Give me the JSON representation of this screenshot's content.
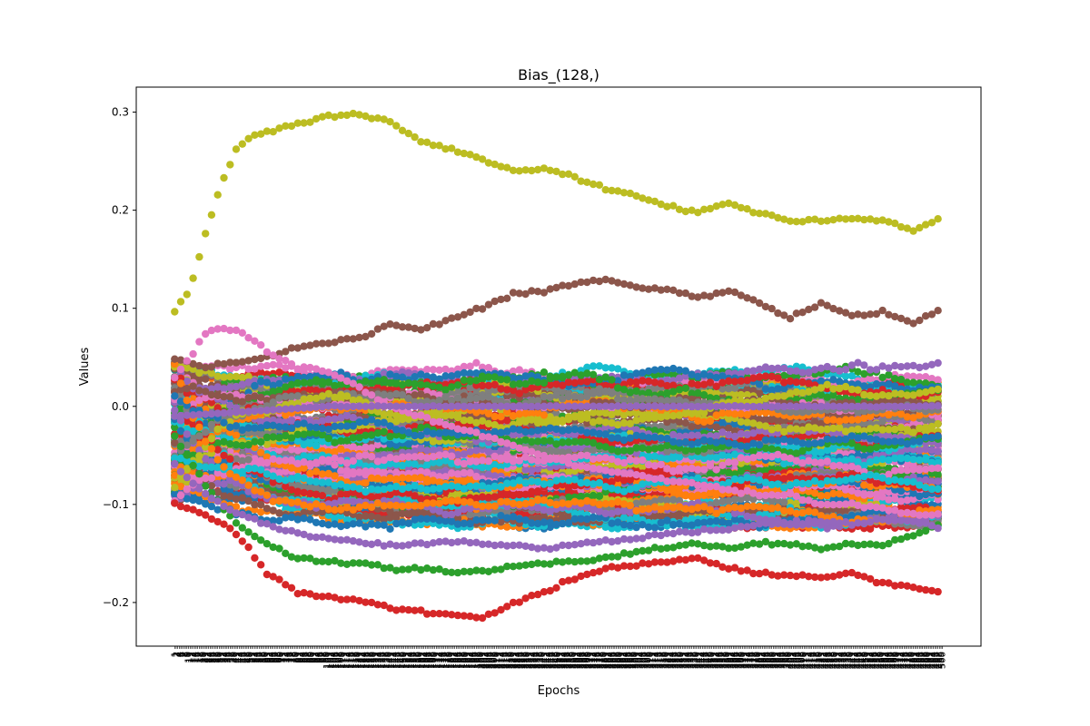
{
  "chart_data": {
    "type": "scatter",
    "title": "Bias_(128,)",
    "xlabel": "Epochs",
    "ylabel": "Values",
    "n_epochs": 500,
    "xlim": [
      -24.95,
      523.95
    ],
    "ylim": [
      -0.2445,
      0.3255
    ],
    "yticks": [
      -0.2,
      -0.1,
      0.0,
      0.1,
      0.2,
      0.3
    ],
    "ytick_labels": [
      "−0.2",
      "−0.1",
      "0.0",
      "0.1",
      "0.2",
      "0.3"
    ],
    "grid": false,
    "legend": "none",
    "n_series": 128,
    "marker": "o",
    "colors": [
      "#1f77b4",
      "#ff7f0e",
      "#2ca02c",
      "#d62728",
      "#9467bd",
      "#8c564b",
      "#e377c2",
      "#7f7f7f",
      "#bcbd22",
      "#17becf"
    ],
    "highlighted_series": [
      {
        "name": "",
        "color": "#bcbd22",
        "x": [
          0,
          10,
          20,
          30,
          40,
          50,
          60,
          80,
          100,
          120,
          140,
          160,
          180,
          200,
          220,
          240,
          260,
          280,
          300,
          320,
          340,
          360,
          380,
          400,
          420,
          440,
          460,
          480,
          499
        ],
        "values": [
          0.097,
          0.12,
          0.175,
          0.225,
          0.262,
          0.276,
          0.28,
          0.288,
          0.296,
          0.298,
          0.29,
          0.27,
          0.262,
          0.252,
          0.24,
          0.242,
          0.234,
          0.222,
          0.215,
          0.205,
          0.198,
          0.207,
          0.197,
          0.19,
          0.189,
          0.192,
          0.19,
          0.18,
          0.192
        ]
      },
      {
        "name": "",
        "color": "#8c564b",
        "x": [
          0,
          20,
          40,
          60,
          80,
          100,
          120,
          140,
          160,
          180,
          200,
          220,
          240,
          260,
          280,
          300,
          320,
          340,
          360,
          380,
          400,
          420,
          440,
          460,
          480,
          499
        ],
        "values": [
          0.05,
          0.04,
          0.045,
          0.05,
          0.06,
          0.065,
          0.07,
          0.083,
          0.078,
          0.09,
          0.1,
          0.115,
          0.118,
          0.125,
          0.13,
          0.122,
          0.12,
          0.11,
          0.118,
          0.105,
          0.09,
          0.105,
          0.092,
          0.095,
          0.085,
          0.1
        ]
      },
      {
        "name": "",
        "color": "#d62728",
        "x": [
          0,
          20,
          40,
          60,
          80,
          100,
          120,
          140,
          160,
          180,
          200,
          220,
          240,
          260,
          280,
          300,
          320,
          340,
          360,
          380,
          400,
          420,
          440,
          460,
          480,
          499
        ],
        "values": [
          -0.1,
          -0.11,
          -0.13,
          -0.17,
          -0.19,
          -0.195,
          -0.198,
          -0.205,
          -0.21,
          -0.212,
          -0.215,
          -0.2,
          -0.19,
          -0.175,
          -0.165,
          -0.162,
          -0.158,
          -0.155,
          -0.165,
          -0.17,
          -0.172,
          -0.175,
          -0.17,
          -0.18,
          -0.185,
          -0.19
        ]
      },
      {
        "name": "",
        "color": "#2ca02c",
        "x": [
          0,
          20,
          40,
          60,
          80,
          100,
          120,
          140,
          160,
          180,
          200,
          220,
          240,
          260,
          280,
          300,
          320,
          340,
          360,
          380,
          400,
          420,
          440,
          460,
          480,
          499
        ],
        "values": [
          -0.03,
          -0.08,
          -0.12,
          -0.14,
          -0.155,
          -0.158,
          -0.16,
          -0.165,
          -0.165,
          -0.17,
          -0.168,
          -0.163,
          -0.16,
          -0.158,
          -0.155,
          -0.148,
          -0.145,
          -0.14,
          -0.145,
          -0.14,
          -0.14,
          -0.145,
          -0.14,
          -0.142,
          -0.13,
          -0.12
        ]
      },
      {
        "name": "",
        "color": "#9467bd",
        "x": [
          0,
          20,
          40,
          60,
          80,
          100,
          120,
          140,
          160,
          180,
          200,
          220,
          240,
          260,
          280,
          300,
          320,
          340,
          360,
          380,
          400,
          420,
          440,
          460,
          480,
          499
        ],
        "values": [
          -0.06,
          -0.09,
          -0.11,
          -0.12,
          -0.13,
          -0.135,
          -0.138,
          -0.142,
          -0.14,
          -0.138,
          -0.14,
          -0.142,
          -0.145,
          -0.14,
          -0.138,
          -0.135,
          -0.13,
          -0.128,
          -0.125,
          -0.12,
          -0.12,
          -0.118,
          -0.12,
          -0.115,
          -0.118,
          -0.125
        ]
      },
      {
        "name": "",
        "color": "#e377c2",
        "x": [
          0,
          10,
          20,
          30,
          40,
          50,
          60,
          80,
          100,
          120,
          140,
          160,
          180,
          200,
          220,
          240,
          260,
          280,
          300,
          320,
          340,
          360,
          380,
          400,
          420,
          440,
          460,
          480,
          499
        ],
        "values": [
          0.03,
          0.05,
          0.075,
          0.08,
          0.078,
          0.07,
          0.055,
          0.04,
          0.035,
          0.02,
          0.0,
          -0.01,
          -0.02,
          -0.03,
          -0.04,
          -0.05,
          -0.06,
          -0.065,
          -0.07,
          -0.075,
          -0.08,
          -0.085,
          -0.09,
          -0.09,
          -0.1,
          -0.1,
          -0.105,
          -0.11,
          -0.11
        ]
      }
    ]
  }
}
